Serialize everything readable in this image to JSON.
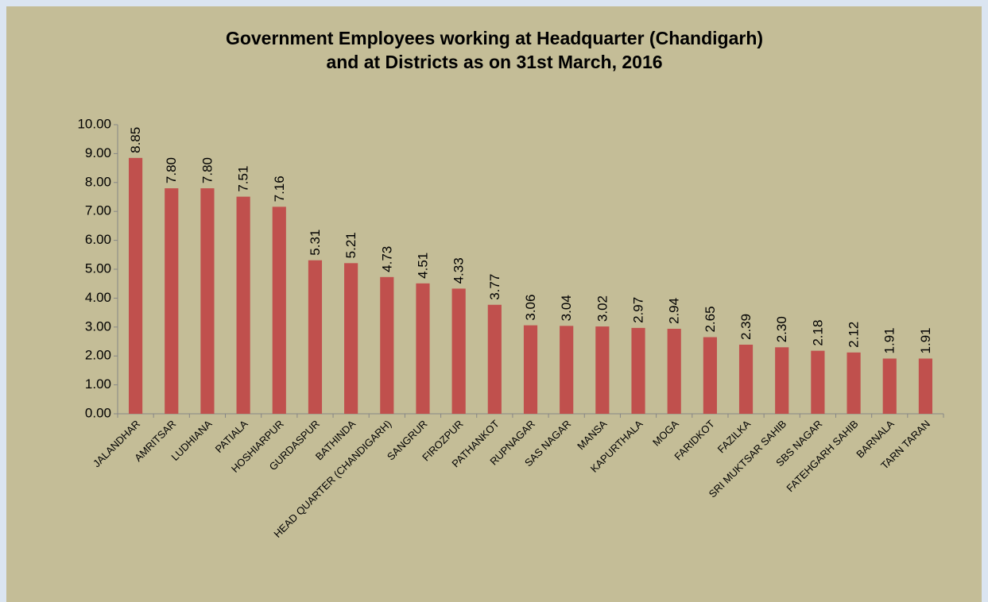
{
  "chart_data": {
    "type": "bar",
    "title": [
      "Government Employees working at Headquarter (Chandigarh)",
      "and at Districts as on 31st March, 2016"
    ],
    "categories": [
      "JALANDHAR",
      "AMRITSAR",
      "LUDHIANA",
      "PATIALA",
      "HOSHIARPUR",
      "GURDASPUR",
      "BATHINDA",
      "HEAD QUARTER (CHANDIGARH)",
      "SANGRUR",
      "FIROZPUR",
      "PATHANKOT",
      "RUPNAGAR",
      "SAS NAGAR",
      "MANSA",
      "KAPURTHALA",
      "MOGA",
      "FARIDKOT",
      "FAZILKA",
      "SRI MUKTSAR SAHIB",
      "SBS NAGAR",
      "FATEHGARH SAHIB",
      "BARNALA",
      "TARN TARAN"
    ],
    "values": [
      8.85,
      7.8,
      7.8,
      7.51,
      7.16,
      5.31,
      5.21,
      4.73,
      4.51,
      4.33,
      3.77,
      3.06,
      3.04,
      3.02,
      2.97,
      2.94,
      2.65,
      2.39,
      2.3,
      2.18,
      2.12,
      1.91,
      1.91
    ],
    "value_labels": [
      "8.85",
      "7.80",
      "7.80",
      "7.51",
      "7.16",
      "5.31",
      "5.21",
      "4.73",
      "4.51",
      "4.33",
      "3.77",
      "3.06",
      "3.04",
      "3.02",
      "2.97",
      "2.94",
      "2.65",
      "2.39",
      "2.30",
      "2.18",
      "2.12",
      "1.91",
      "1.91"
    ],
    "color": "#c0504d",
    "ylim": [
      0,
      10
    ],
    "yticks": [
      {
        "value": 0,
        "label": "0.00"
      },
      {
        "value": 1,
        "label": "1.00"
      },
      {
        "value": 2,
        "label": "2.00"
      },
      {
        "value": 3,
        "label": "3.00"
      },
      {
        "value": 4,
        "label": "4.00"
      },
      {
        "value": 5,
        "label": "5.00"
      },
      {
        "value": 6,
        "label": "6.00"
      },
      {
        "value": 7,
        "label": "7.00"
      },
      {
        "value": 8,
        "label": "8.00"
      },
      {
        "value": 9,
        "label": "9.00"
      },
      {
        "value": 10,
        "label": "10.00"
      }
    ],
    "grid": false
  }
}
